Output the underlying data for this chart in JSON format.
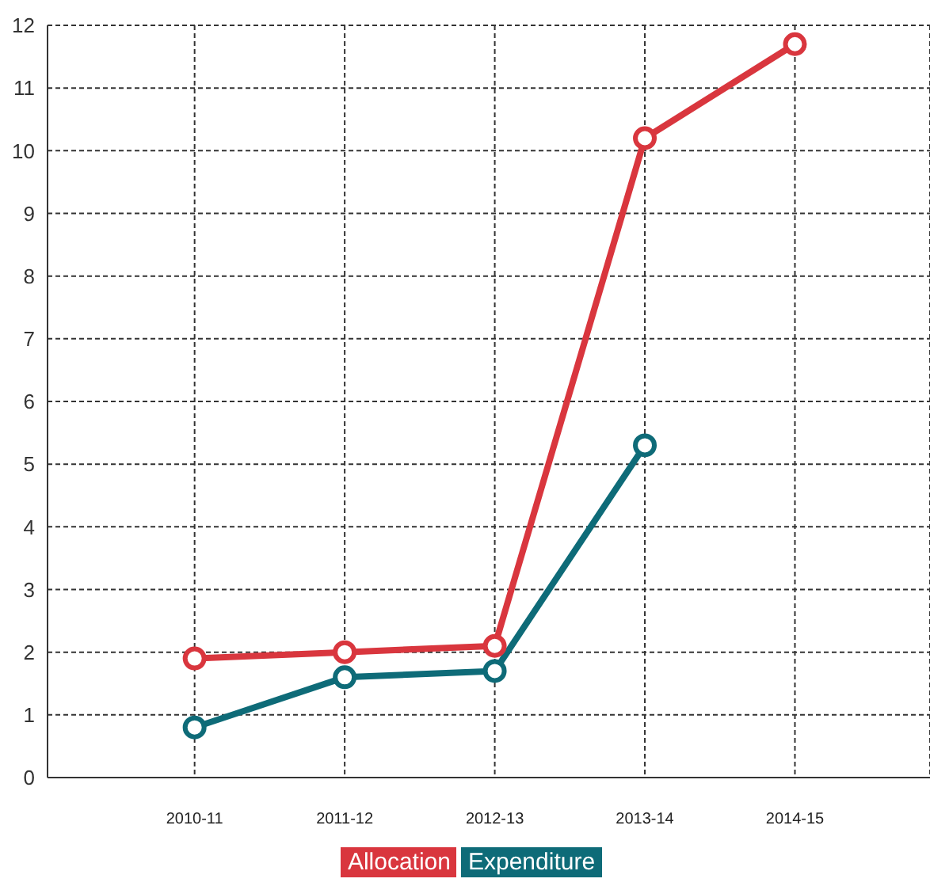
{
  "chart_data": {
    "type": "line",
    "categories": [
      "2010-11",
      "2011-12",
      "2012-13",
      "2013-14",
      "2014-15"
    ],
    "series": [
      {
        "name": "Allocation",
        "color": "#d9363e",
        "values": [
          1.9,
          2.0,
          2.1,
          10.2,
          11.7
        ]
      },
      {
        "name": "Expenditure",
        "color": "#0e6b78",
        "values": [
          0.8,
          1.6,
          1.7,
          5.3,
          null
        ]
      }
    ],
    "ylim": [
      0,
      12
    ],
    "yticks": [
      0,
      1,
      2,
      3,
      4,
      5,
      6,
      7,
      8,
      9,
      10,
      11,
      12
    ],
    "grid": true,
    "legend": "bottom",
    "marker": "circle",
    "line_style": "solid"
  }
}
